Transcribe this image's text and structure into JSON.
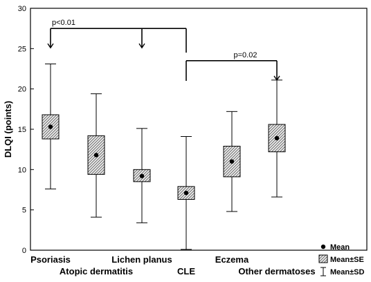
{
  "chart_data": {
    "type": "box",
    "ylabel": "DLQI (points)",
    "ylim": [
      0,
      30
    ],
    "yticks": [
      0,
      5,
      10,
      15,
      20,
      25,
      30
    ],
    "grid": false,
    "categories": [
      "Psoriasis",
      "Atopic dermatitis",
      "Lichen planus",
      "CLE",
      "Eczema",
      "Other dermatoses"
    ],
    "mean": [
      15.3,
      11.8,
      9.2,
      7.1,
      11.0,
      13.9
    ],
    "se_low": [
      13.8,
      9.4,
      8.5,
      6.3,
      9.1,
      12.2
    ],
    "se_high": [
      16.8,
      14.2,
      10.0,
      7.9,
      12.9,
      15.6
    ],
    "sd_low": [
      7.6,
      4.1,
      3.4,
      0.1,
      4.8,
      6.6
    ],
    "sd_high": [
      23.1,
      19.4,
      15.1,
      14.1,
      17.2,
      21.1
    ],
    "annotations": [
      {
        "label": "p<0.01",
        "from": "CLE",
        "to": [
          "Psoriasis",
          "Lichen planus"
        ],
        "y": 27.5
      },
      {
        "label": "p=0.02",
        "from": "CLE",
        "to": [
          "Other dermatoses"
        ],
        "y": 23.5
      }
    ],
    "legend": {
      "position": "bottom-right",
      "items": [
        {
          "symbol": "mean-dot",
          "label": "Mean"
        },
        {
          "symbol": "se-box",
          "label": "Mean±SE"
        },
        {
          "symbol": "sd-whisker",
          "label": "Mean±SD"
        }
      ]
    }
  }
}
